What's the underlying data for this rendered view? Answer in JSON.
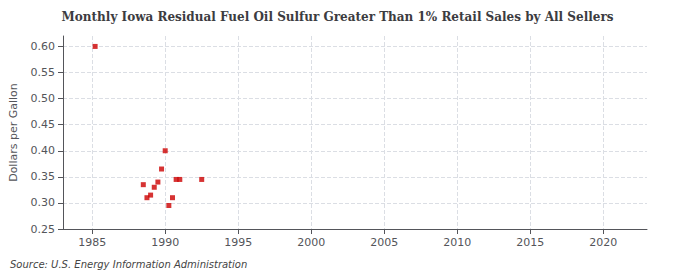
{
  "chart_data": {
    "type": "scatter",
    "title": "Monthly Iowa Residual Fuel Oil Sulfur Greater Than 1% Retail Sales by All Sellers",
    "ylabel": "Dollars per Gallon",
    "annotation": "Source: U.S. Energy Information Administration",
    "x": [
      1985.2,
      1988.5,
      1988.75,
      1989.0,
      1989.25,
      1989.5,
      1989.75,
      1990.0,
      1990.25,
      1990.5,
      1990.75,
      1991.0,
      1992.5
    ],
    "values": [
      0.6,
      0.335,
      0.31,
      0.315,
      0.33,
      0.34,
      0.365,
      0.4,
      0.295,
      0.31,
      0.345,
      0.345,
      0.345
    ],
    "color": "#cc0000",
    "marker": "square",
    "xlim": [
      1983,
      2023
    ],
    "ylim": [
      0.25,
      0.62
    ],
    "xticks": [
      1985,
      1990,
      1995,
      2000,
      2005,
      2010,
      2015,
      2020
    ],
    "yticks": [
      0.25,
      {
        "value": 0.3,
        "label": "0.30"
      },
      0.35,
      {
        "value": 0.4,
        "label": "0.40"
      },
      0.45,
      {
        "value": 0.5,
        "label": "0.50"
      },
      0.55,
      {
        "value": 0.6,
        "label": "0.60"
      }
    ],
    "grid": true
  }
}
